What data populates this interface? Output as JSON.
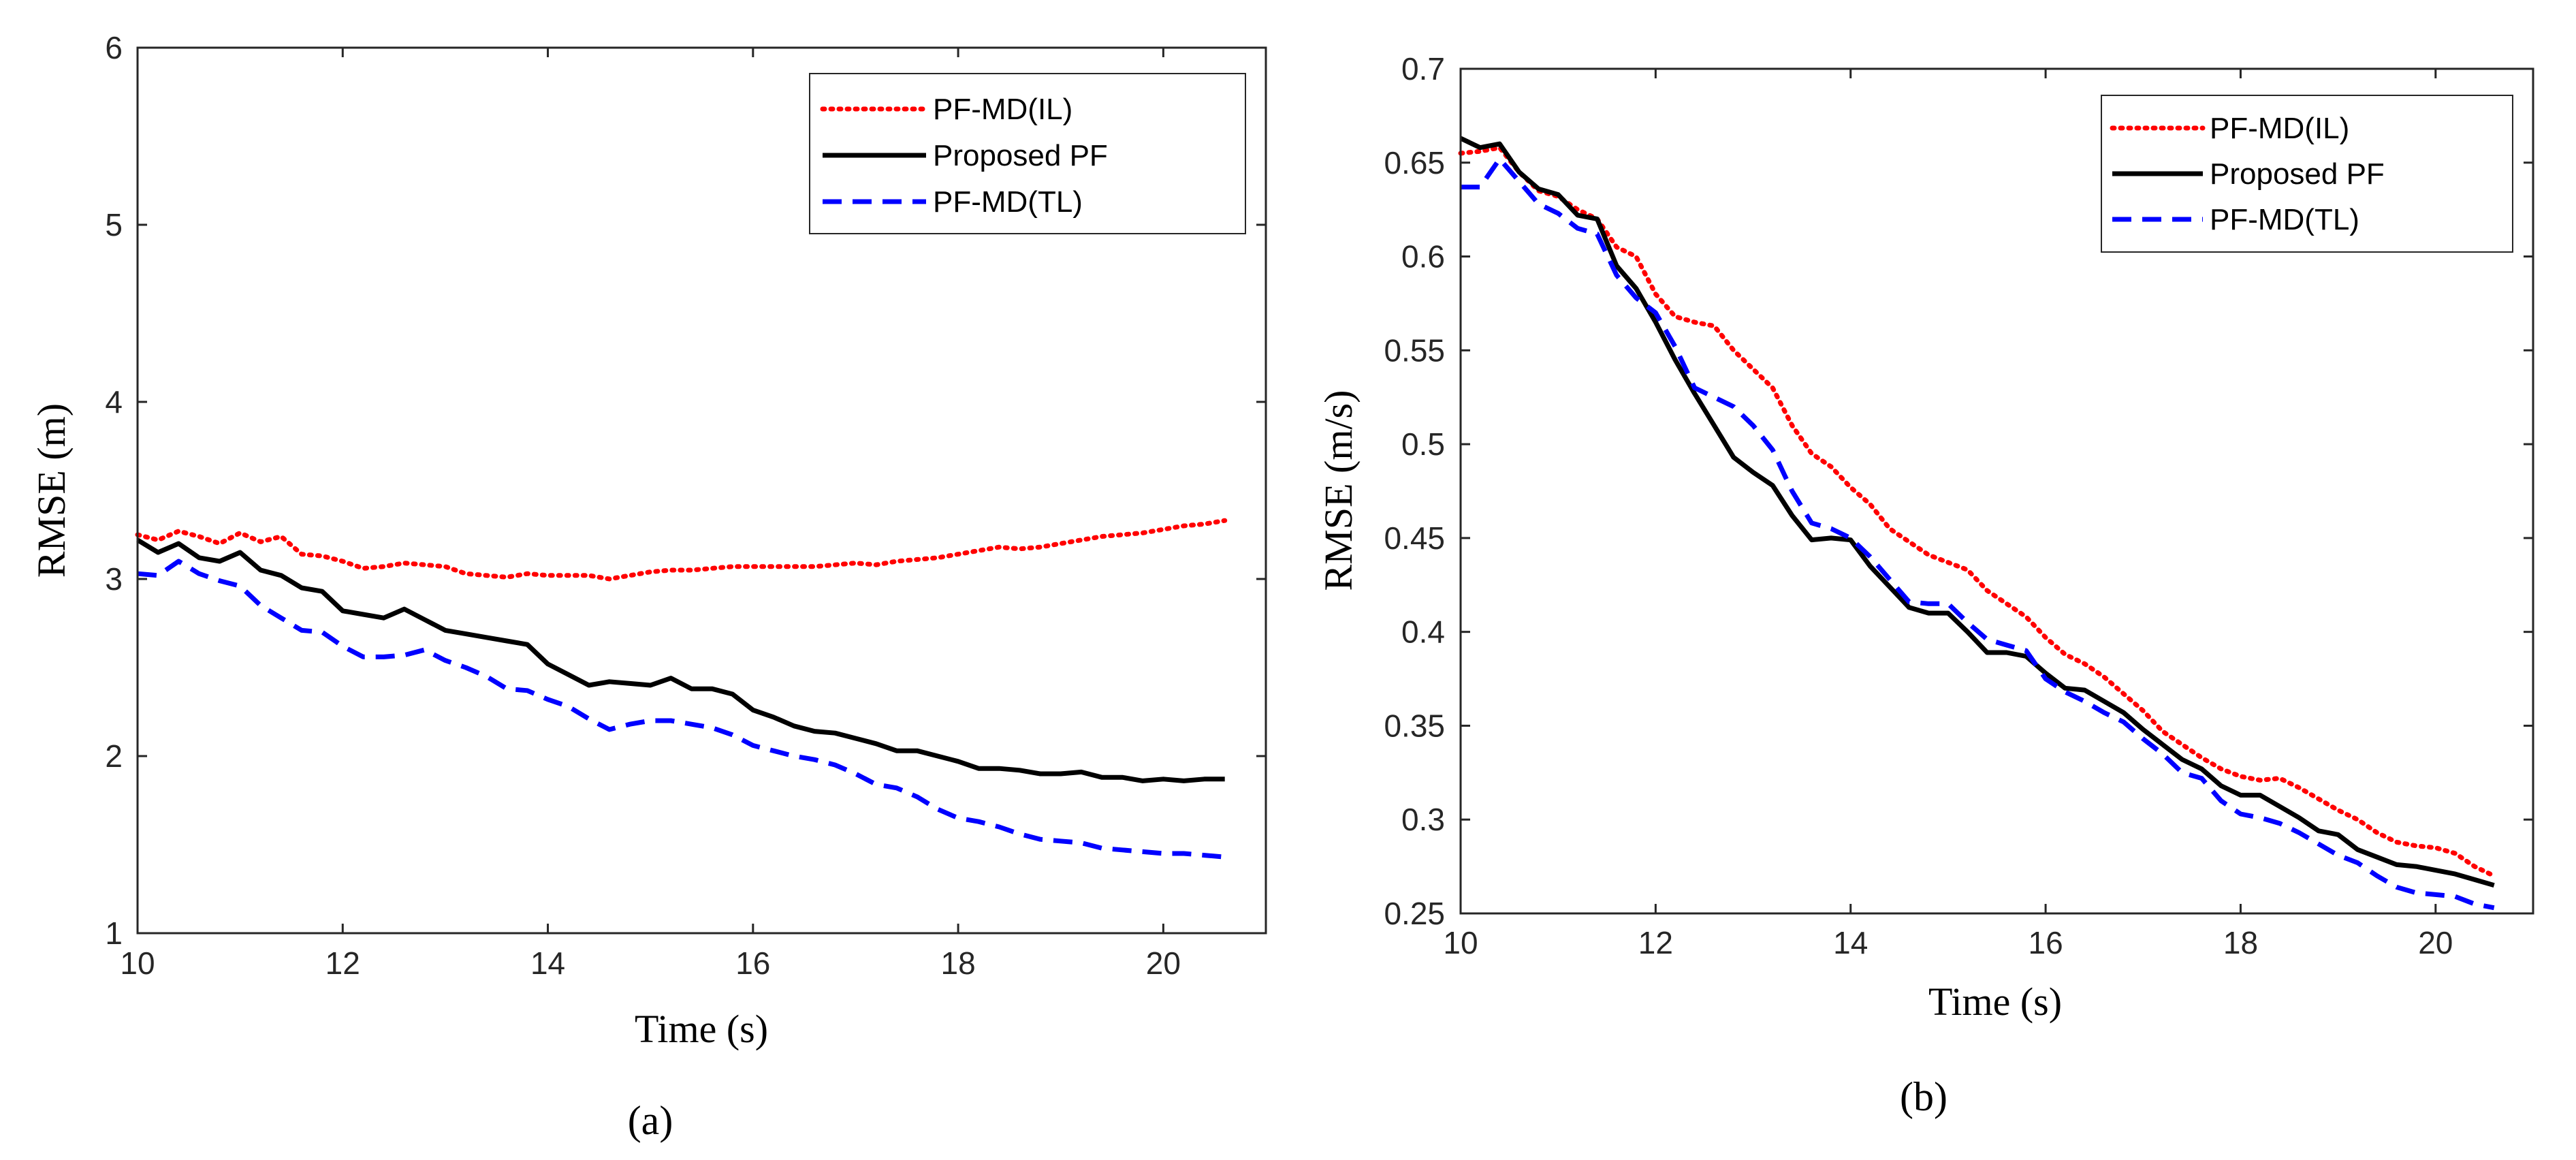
{
  "chart_data": [
    {
      "type": "line",
      "panel": "a",
      "caption": "(a)",
      "xlabel": "Time (s)",
      "ylabel": "RMSE (m)",
      "xlim": [
        10,
        21
      ],
      "ylim": [
        1,
        6
      ],
      "xticks": [
        10,
        12,
        14,
        16,
        18,
        20
      ],
      "yticks": [
        1,
        2,
        3,
        4,
        5,
        6
      ],
      "xtick_labels": [
        "10",
        "12",
        "14",
        "16",
        "18",
        "20"
      ],
      "ytick_labels": [
        "1",
        "2",
        "3",
        "4",
        "5",
        "6"
      ],
      "grid": false,
      "legend_position": "top-right",
      "series": [
        {
          "name": "PF-MD(IL)",
          "color": "#ff0000",
          "style": "dotted",
          "x": [
            10,
            10.2,
            10.4,
            10.6,
            10.8,
            11,
            11.2,
            11.4,
            11.6,
            11.8,
            12,
            12.2,
            12.4,
            12.6,
            12.8,
            13,
            13.2,
            13.4,
            13.6,
            13.8,
            14,
            14.2,
            14.4,
            14.6,
            14.8,
            15,
            15.2,
            15.4,
            15.6,
            15.8,
            16,
            16.2,
            16.4,
            16.6,
            16.8,
            17,
            17.2,
            17.4,
            17.6,
            17.8,
            18,
            18.2,
            18.4,
            18.6,
            18.8,
            19,
            19.2,
            19.4,
            19.6,
            19.8,
            20,
            20.2,
            20.4,
            20.6
          ],
          "y": [
            3.25,
            3.22,
            3.27,
            3.24,
            3.2,
            3.26,
            3.21,
            3.24,
            3.14,
            3.13,
            3.1,
            3.06,
            3.07,
            3.09,
            3.08,
            3.07,
            3.03,
            3.02,
            3.01,
            3.03,
            3.02,
            3.02,
            3.02,
            3.0,
            3.02,
            3.04,
            3.05,
            3.05,
            3.06,
            3.07,
            3.07,
            3.07,
            3.07,
            3.07,
            3.08,
            3.09,
            3.08,
            3.1,
            3.11,
            3.12,
            3.14,
            3.16,
            3.18,
            3.17,
            3.18,
            3.2,
            3.22,
            3.24,
            3.25,
            3.26,
            3.28,
            3.3,
            3.31,
            3.33
          ]
        },
        {
          "name": "Proposed PF",
          "color": "#000000",
          "style": "solid",
          "x": [
            10,
            10.2,
            10.4,
            10.6,
            10.8,
            11,
            11.2,
            11.4,
            11.6,
            11.8,
            12,
            12.2,
            12.4,
            12.6,
            12.8,
            13,
            13.2,
            13.4,
            13.6,
            13.8,
            14,
            14.2,
            14.4,
            14.6,
            14.8,
            15,
            15.2,
            15.4,
            15.6,
            15.8,
            16,
            16.2,
            16.4,
            16.6,
            16.8,
            17,
            17.2,
            17.4,
            17.6,
            17.8,
            18,
            18.2,
            18.4,
            18.6,
            18.8,
            19,
            19.2,
            19.4,
            19.6,
            19.8,
            20,
            20.2,
            20.4,
            20.6
          ],
          "y": [
            3.22,
            3.15,
            3.2,
            3.12,
            3.1,
            3.15,
            3.05,
            3.02,
            2.95,
            2.93,
            2.82,
            2.8,
            2.78,
            2.83,
            2.77,
            2.71,
            2.69,
            2.67,
            2.65,
            2.63,
            2.52,
            2.46,
            2.4,
            2.42,
            2.41,
            2.4,
            2.44,
            2.38,
            2.38,
            2.35,
            2.26,
            2.22,
            2.17,
            2.14,
            2.13,
            2.1,
            2.07,
            2.03,
            2.03,
            2.0,
            1.97,
            1.93,
            1.93,
            1.92,
            1.9,
            1.9,
            1.91,
            1.88,
            1.88,
            1.86,
            1.87,
            1.86,
            1.87,
            1.87
          ]
        },
        {
          "name": "PF-MD(TL)",
          "color": "#0000ff",
          "style": "dashed",
          "x": [
            10,
            10.2,
            10.4,
            10.6,
            10.8,
            11,
            11.2,
            11.4,
            11.6,
            11.8,
            12,
            12.2,
            12.4,
            12.6,
            12.8,
            13,
            13.2,
            13.4,
            13.6,
            13.8,
            14,
            14.2,
            14.4,
            14.6,
            14.8,
            15,
            15.2,
            15.4,
            15.6,
            15.8,
            16,
            16.2,
            16.4,
            16.6,
            16.8,
            17,
            17.2,
            17.4,
            17.6,
            17.8,
            18,
            18.2,
            18.4,
            18.6,
            18.8,
            19,
            19.2,
            19.4,
            19.6,
            19.8,
            20,
            20.2,
            20.4,
            20.6
          ],
          "y": [
            3.03,
            3.02,
            3.1,
            3.03,
            2.99,
            2.96,
            2.85,
            2.78,
            2.71,
            2.7,
            2.62,
            2.56,
            2.56,
            2.57,
            2.6,
            2.54,
            2.5,
            2.45,
            2.38,
            2.37,
            2.32,
            2.28,
            2.21,
            2.15,
            2.18,
            2.2,
            2.2,
            2.18,
            2.16,
            2.12,
            2.06,
            2.03,
            2.0,
            1.98,
            1.95,
            1.9,
            1.84,
            1.82,
            1.77,
            1.7,
            1.65,
            1.63,
            1.6,
            1.56,
            1.53,
            1.52,
            1.51,
            1.48,
            1.47,
            1.46,
            1.45,
            1.45,
            1.44,
            1.43
          ]
        }
      ]
    },
    {
      "type": "line",
      "panel": "b",
      "caption": "(b)",
      "xlabel": "Time (s)",
      "ylabel": "RMSE (m/s)",
      "xlim": [
        10,
        21
      ],
      "ylim": [
        0.25,
        0.7
      ],
      "xticks": [
        10,
        12,
        14,
        16,
        18,
        20
      ],
      "yticks": [
        0.25,
        0.3,
        0.35,
        0.4,
        0.45,
        0.5,
        0.55,
        0.6,
        0.65,
        0.7
      ],
      "xtick_labels": [
        "10",
        "12",
        "14",
        "16",
        "18",
        "20"
      ],
      "ytick_labels": [
        "0.25",
        "0.3",
        "0.35",
        "0.4",
        "0.45",
        "0.5",
        "0.55",
        "0.6",
        "0.65",
        "0.7"
      ],
      "grid": false,
      "legend_position": "top-right",
      "series": [
        {
          "name": "PF-MD(IL)",
          "color": "#ff0000",
          "style": "dotted",
          "x": [
            10,
            10.2,
            10.4,
            10.6,
            10.8,
            11,
            11.2,
            11.4,
            11.6,
            11.8,
            12,
            12.2,
            12.4,
            12.6,
            12.8,
            13,
            13.2,
            13.4,
            13.6,
            13.8,
            14,
            14.2,
            14.4,
            14.6,
            14.8,
            15,
            15.2,
            15.4,
            15.6,
            15.8,
            16,
            16.2,
            16.4,
            16.6,
            16.8,
            17,
            17.2,
            17.4,
            17.6,
            17.8,
            18,
            18.2,
            18.4,
            18.6,
            18.8,
            19,
            19.2,
            19.4,
            19.6,
            19.8,
            20,
            20.2,
            20.4,
            20.6
          ],
          "y": [
            0.655,
            0.656,
            0.658,
            0.645,
            0.635,
            0.632,
            0.625,
            0.62,
            0.605,
            0.6,
            0.58,
            0.568,
            0.565,
            0.563,
            0.55,
            0.54,
            0.53,
            0.51,
            0.495,
            0.488,
            0.477,
            0.468,
            0.455,
            0.448,
            0.441,
            0.437,
            0.433,
            0.422,
            0.415,
            0.408,
            0.397,
            0.388,
            0.383,
            0.376,
            0.367,
            0.358,
            0.347,
            0.34,
            0.333,
            0.327,
            0.323,
            0.321,
            0.322,
            0.317,
            0.311,
            0.305,
            0.3,
            0.293,
            0.288,
            0.286,
            0.285,
            0.282,
            0.275,
            0.27
          ]
        },
        {
          "name": "Proposed PF",
          "color": "#000000",
          "style": "solid",
          "x": [
            10,
            10.2,
            10.4,
            10.6,
            10.8,
            11,
            11.2,
            11.4,
            11.6,
            11.8,
            12,
            12.2,
            12.4,
            12.6,
            12.8,
            13,
            13.2,
            13.4,
            13.6,
            13.8,
            14,
            14.2,
            14.4,
            14.6,
            14.8,
            15,
            15.2,
            15.4,
            15.6,
            15.8,
            16,
            16.2,
            16.4,
            16.6,
            16.8,
            17,
            17.2,
            17.4,
            17.6,
            17.8,
            18,
            18.2,
            18.4,
            18.6,
            18.8,
            19,
            19.2,
            19.4,
            19.6,
            19.8,
            20,
            20.2,
            20.4,
            20.6
          ],
          "y": [
            0.663,
            0.658,
            0.66,
            0.645,
            0.636,
            0.633,
            0.622,
            0.62,
            0.595,
            0.583,
            0.565,
            0.545,
            0.527,
            0.51,
            0.493,
            0.485,
            0.478,
            0.462,
            0.449,
            0.45,
            0.449,
            0.435,
            0.424,
            0.413,
            0.41,
            0.41,
            0.4,
            0.389,
            0.389,
            0.387,
            0.378,
            0.37,
            0.369,
            0.363,
            0.357,
            0.348,
            0.34,
            0.332,
            0.327,
            0.318,
            0.313,
            0.313,
            0.307,
            0.301,
            0.294,
            0.292,
            0.284,
            0.28,
            0.276,
            0.275,
            0.273,
            0.271,
            0.268,
            0.265
          ]
        },
        {
          "name": "PF-MD(TL)",
          "color": "#0000ff",
          "style": "dashed",
          "x": [
            10,
            10.2,
            10.4,
            10.6,
            10.8,
            11,
            11.2,
            11.4,
            11.6,
            11.8,
            12,
            12.2,
            12.4,
            12.6,
            12.8,
            13,
            13.2,
            13.4,
            13.6,
            13.8,
            14,
            14.2,
            14.4,
            14.6,
            14.8,
            15,
            15.2,
            15.4,
            15.6,
            15.8,
            16,
            16.2,
            16.4,
            16.6,
            16.8,
            17,
            17.2,
            17.4,
            17.6,
            17.8,
            18,
            18.2,
            18.4,
            18.6,
            18.8,
            19,
            19.2,
            19.4,
            19.6,
            19.8,
            20,
            20.2,
            20.4,
            20.6
          ],
          "y": [
            0.637,
            0.637,
            0.652,
            0.64,
            0.628,
            0.623,
            0.615,
            0.612,
            0.59,
            0.578,
            0.57,
            0.552,
            0.53,
            0.525,
            0.52,
            0.51,
            0.497,
            0.475,
            0.458,
            0.455,
            0.45,
            0.44,
            0.428,
            0.416,
            0.415,
            0.415,
            0.405,
            0.396,
            0.393,
            0.39,
            0.375,
            0.368,
            0.363,
            0.357,
            0.352,
            0.343,
            0.335,
            0.325,
            0.322,
            0.31,
            0.303,
            0.301,
            0.298,
            0.293,
            0.287,
            0.281,
            0.277,
            0.27,
            0.264,
            0.261,
            0.26,
            0.259,
            0.255,
            0.253
          ]
        }
      ]
    }
  ]
}
